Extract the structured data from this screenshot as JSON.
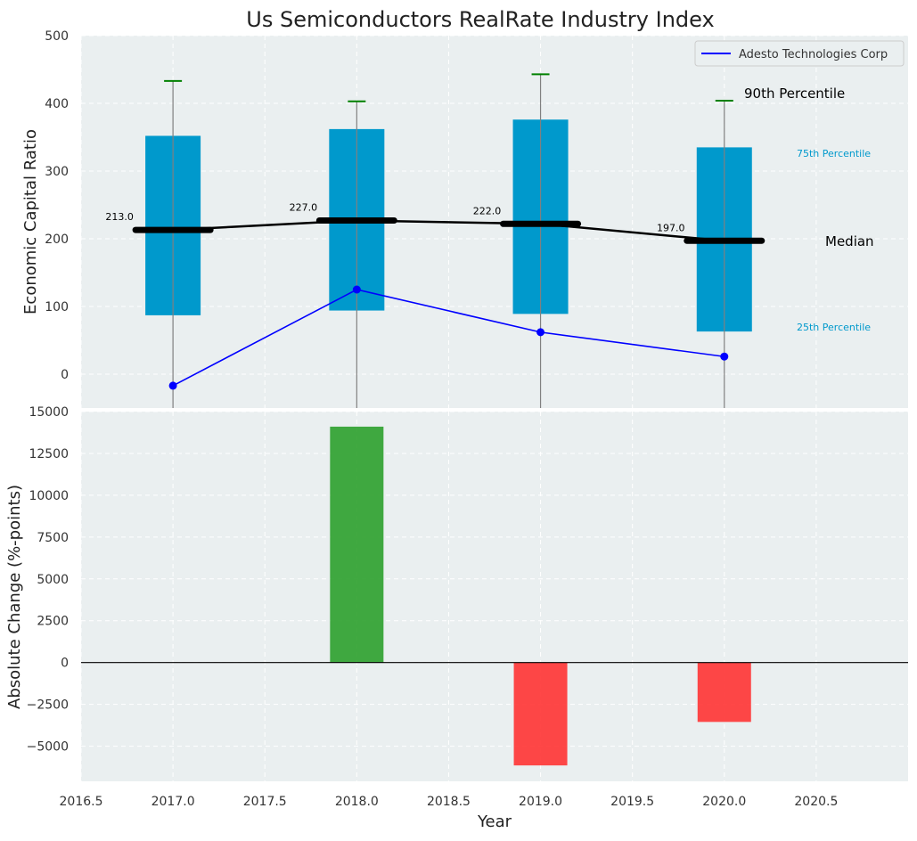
{
  "chart_data": [
    {
      "type": "box",
      "title": "Us Semiconductors RealRate Industry Index",
      "ylabel": "Economic Capital Ratio",
      "ylim": [
        -50,
        500
      ],
      "yticks": [
        0,
        100,
        200,
        300,
        400,
        500
      ],
      "grid": true,
      "categories": [
        2017,
        2018,
        2019,
        2020
      ],
      "percentile_25": [
        87,
        94,
        89,
        63
      ],
      "median": [
        213,
        227,
        222,
        197
      ],
      "percentile_75": [
        352,
        362,
        376,
        335
      ],
      "percentile_90": [
        433,
        403,
        443,
        404
      ],
      "median_labels": [
        "213.0",
        "227.0",
        "222.0",
        "197.0"
      ],
      "series": [
        {
          "name": "Adesto Technologies Corp",
          "x": [
            2017,
            2018,
            2019,
            2020
          ],
          "values": [
            -17,
            125,
            62,
            26
          ],
          "color": "#0000ff"
        }
      ],
      "legend_position": "top-right",
      "annotations": {
        "p90": "90th Percentile",
        "p75": "75th Percentile",
        "median": "Median",
        "p25": "25th Percentile"
      },
      "colors": {
        "box": "#0099cc",
        "median": "#000000",
        "whisker_cap": "#008000",
        "background": "#eaeff0"
      }
    },
    {
      "type": "bar",
      "xlabel": "Year",
      "ylabel": "Absolute Change (%-points)",
      "x": [
        2018,
        2019,
        2020
      ],
      "values": [
        14100,
        -6150,
        -3550
      ],
      "ylim": [
        -7100,
        15000
      ],
      "yticks": [
        -5000,
        -2500,
        0,
        2500,
        5000,
        7500,
        10000,
        12500,
        15000
      ],
      "xlim": [
        2016.5,
        2021.0
      ],
      "xticks": [
        "2016.5",
        "2017.0",
        "2017.5",
        "2018.0",
        "2018.5",
        "2019.0",
        "2019.5",
        "2020.0",
        "2020.5"
      ],
      "grid": true,
      "colors": {
        "positive": "#2ca02c",
        "negative": "#ff3333"
      }
    }
  ]
}
